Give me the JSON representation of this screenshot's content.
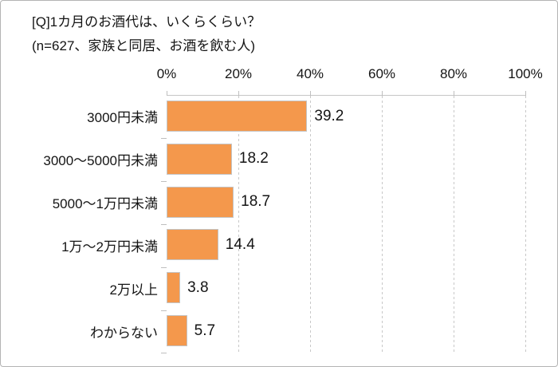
{
  "title": "[Q]1カ月のお酒代は、いくらくらい？",
  "subtitle": "(n=627、家族と同居、お酒を飲む人)",
  "chart_data": {
    "type": "bar",
    "orientation": "horizontal",
    "title": "[Q]1カ月のお酒代は、いくらくらい？",
    "subtitle": "(n=627、家族と同居、お酒を飲む人)",
    "categories": [
      "3000円未満",
      "3000〜5000円未満",
      "5000〜1万円未満",
      "1万〜2万円未満",
      "2万以上",
      "わからない"
    ],
    "values": [
      39.2,
      18.2,
      18.7,
      14.4,
      3.8,
      5.7
    ],
    "unit": "%",
    "xlim": [
      0,
      100
    ],
    "x_ticks": [
      "0%",
      "20%",
      "40%",
      "60%",
      "80%",
      "100%"
    ],
    "x_tick_values": [
      0,
      20,
      40,
      60,
      80,
      100
    ],
    "grid": "vertical-dashed",
    "legend": "none",
    "bar_color": "#f4984c",
    "bar_border_color": "#c4c4c4",
    "gridline_color": "#c8c8c8",
    "axis_line_color": "#c6c6c6",
    "text_color": "#141414"
  }
}
